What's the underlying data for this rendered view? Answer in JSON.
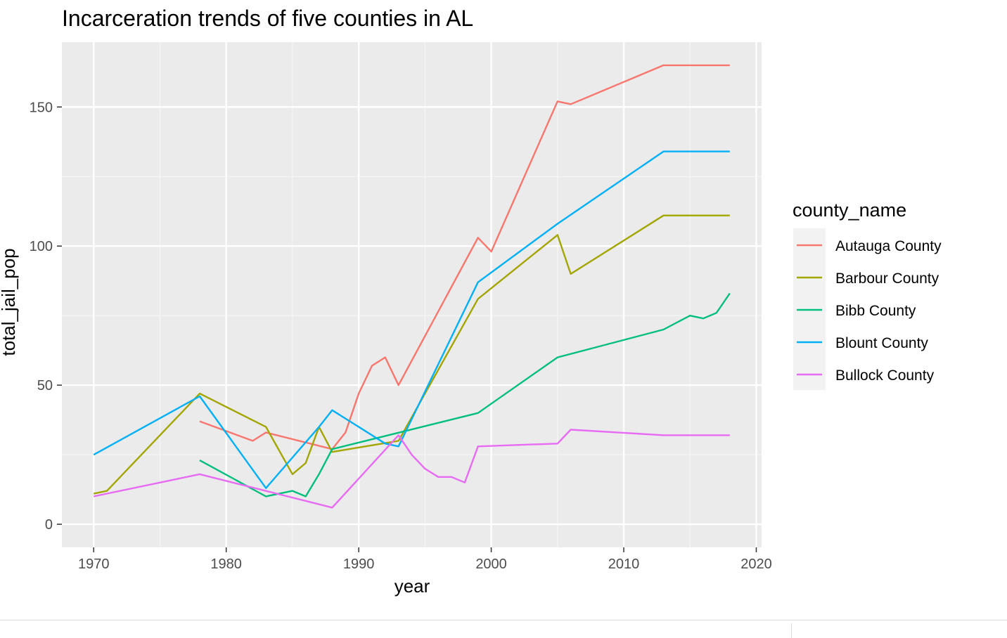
{
  "chart_data": {
    "type": "line",
    "title": "Incarceration trends of five counties in AL",
    "xlabel": "year",
    "ylabel": "total_jail_pop",
    "xlim": [
      1967.6,
      2020.4
    ],
    "ylim": [
      -8.3,
      173.3
    ],
    "x_ticks": [
      1970,
      1980,
      1990,
      2000,
      2010,
      2020
    ],
    "y_ticks": [
      0,
      50,
      100,
      150
    ],
    "grid": true,
    "legend": {
      "title": "county_name",
      "position": "right"
    },
    "series": [
      {
        "name": "Autauga County",
        "color": "#F8766D",
        "points": [
          [
            1978,
            37
          ],
          [
            1982,
            30
          ],
          [
            1983,
            33
          ],
          [
            1988,
            27
          ],
          [
            1989,
            33
          ],
          [
            1990,
            47
          ],
          [
            1991,
            57
          ],
          [
            1992,
            60
          ],
          [
            1993,
            50
          ],
          [
            1999,
            103
          ],
          [
            2000,
            98
          ],
          [
            2005,
            152
          ],
          [
            2006,
            151
          ],
          [
            2013,
            165
          ],
          [
            2018,
            165
          ]
        ]
      },
      {
        "name": "Barbour County",
        "color": "#A3A500",
        "points": [
          [
            1970,
            11
          ],
          [
            1971,
            12
          ],
          [
            1978,
            47
          ],
          [
            1983,
            35
          ],
          [
            1985,
            18
          ],
          [
            1986,
            22
          ],
          [
            1987,
            35
          ],
          [
            1988,
            26
          ],
          [
            1993,
            30
          ],
          [
            1999,
            81
          ],
          [
            2005,
            104
          ],
          [
            2006,
            90
          ],
          [
            2013,
            111
          ],
          [
            2018,
            111
          ]
        ]
      },
      {
        "name": "Bibb County",
        "color": "#00BF7D",
        "points": [
          [
            1978,
            23
          ],
          [
            1983,
            10
          ],
          [
            1985,
            12
          ],
          [
            1986,
            10
          ],
          [
            1987,
            18
          ],
          [
            1988,
            27
          ],
          [
            1999,
            40
          ],
          [
            2005,
            60
          ],
          [
            2013,
            70
          ],
          [
            2015,
            75
          ],
          [
            2016,
            74
          ],
          [
            2017,
            76
          ],
          [
            2018,
            83
          ]
        ]
      },
      {
        "name": "Blount County",
        "color": "#00B0F6",
        "points": [
          [
            1970,
            25
          ],
          [
            1978,
            46
          ],
          [
            1983,
            13
          ],
          [
            1987,
            35
          ],
          [
            1988,
            41
          ],
          [
            1992,
            29
          ],
          [
            1993,
            28
          ],
          [
            1999,
            87
          ],
          [
            2005,
            108
          ],
          [
            2013,
            134
          ],
          [
            2018,
            134
          ]
        ]
      },
      {
        "name": "Bullock County",
        "color": "#E76BF3",
        "points": [
          [
            1970,
            10
          ],
          [
            1978,
            18
          ],
          [
            1988,
            6
          ],
          [
            1993,
            32
          ],
          [
            1994,
            25
          ],
          [
            1995,
            20
          ],
          [
            1996,
            17
          ],
          [
            1997,
            17
          ],
          [
            1998,
            15
          ],
          [
            1999,
            28
          ],
          [
            2005,
            29
          ],
          [
            2006,
            34
          ],
          [
            2013,
            32
          ],
          [
            2018,
            32
          ]
        ]
      }
    ]
  }
}
